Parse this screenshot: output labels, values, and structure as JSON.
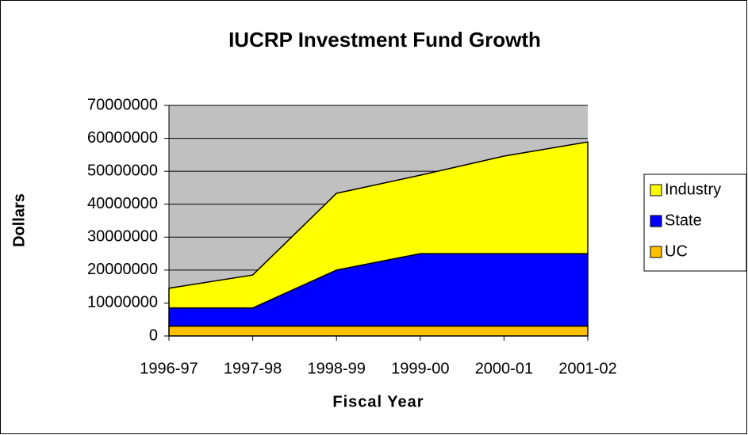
{
  "chart_data": {
    "type": "area",
    "stacked": true,
    "title": "IUCRP Investment Fund Growth",
    "x_label": "Fiscal Year",
    "y_label": "Dollars",
    "categories": [
      "1996-97",
      "1997-98",
      "1998-99",
      "1999-00",
      "2000-01",
      "2001-02"
    ],
    "series": [
      {
        "name": "UC",
        "color": "#ffc000",
        "values": [
          3000000,
          3000000,
          3000000,
          3000000,
          3000000,
          3000000
        ]
      },
      {
        "name": "State",
        "color": "#0000ff",
        "values": [
          5500000,
          5500000,
          17000000,
          22000000,
          22000000,
          22000000
        ]
      },
      {
        "name": "Industry",
        "color": "#ffff00",
        "values": [
          6000000,
          10000000,
          23300000,
          23800000,
          29600000,
          33900000
        ]
      }
    ],
    "ylim": [
      0,
      70000000
    ],
    "yticks": [
      0,
      10000000,
      20000000,
      30000000,
      40000000,
      50000000,
      60000000,
      70000000
    ],
    "grid": true,
    "plot_background": "#c0c0c0",
    "legend": "right"
  }
}
